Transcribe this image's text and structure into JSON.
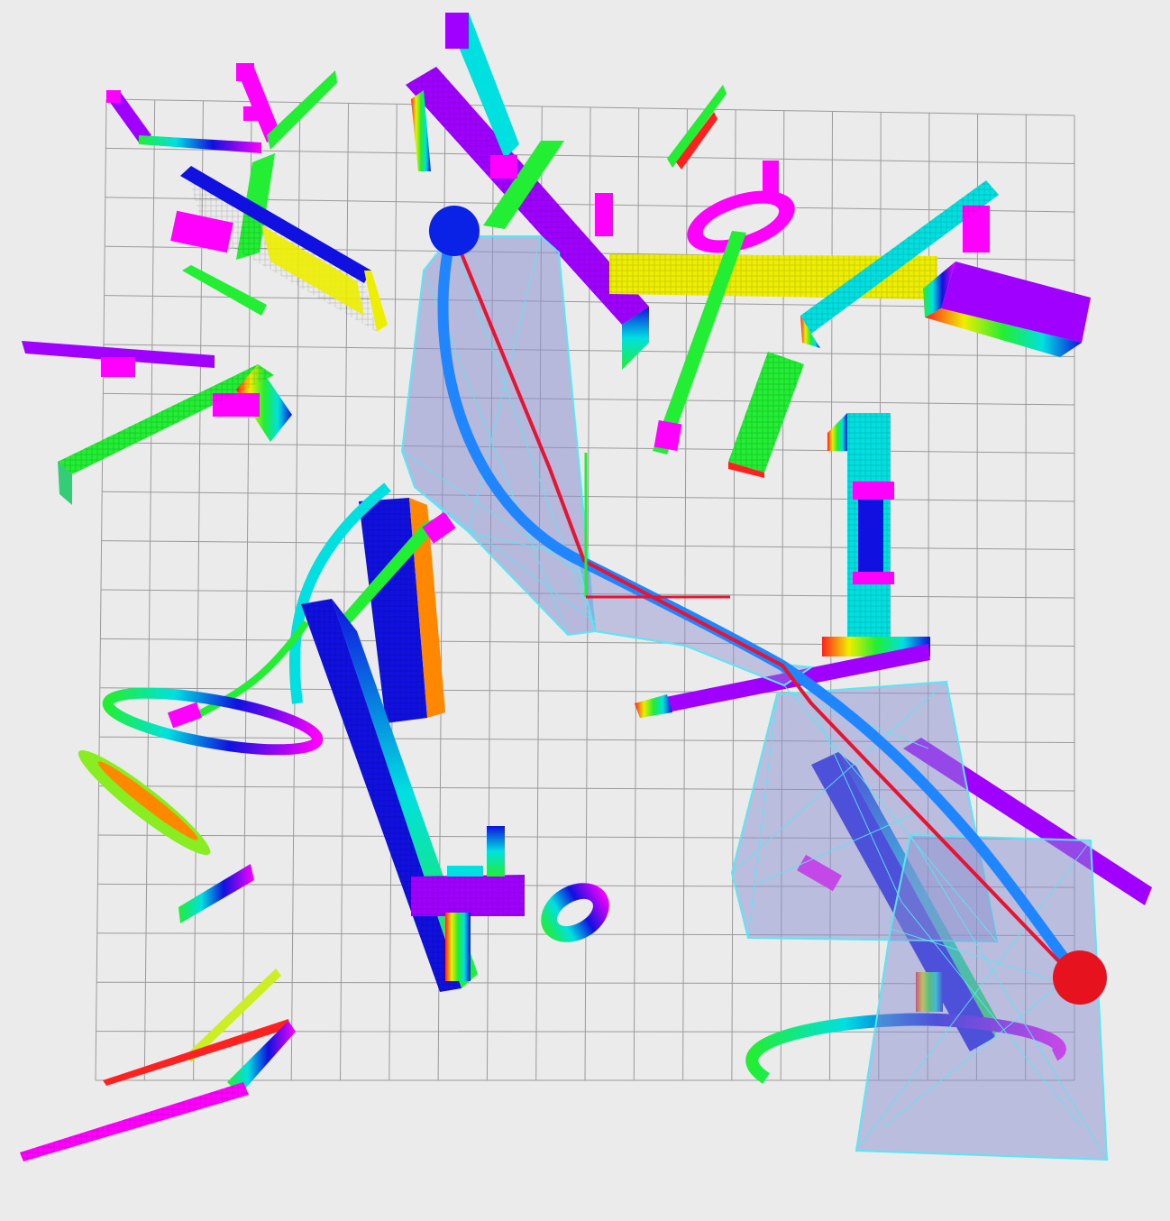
{
  "scene": {
    "description_free": true,
    "start_marker_color": "#0a22e6",
    "goal_marker_color": "#e6121e",
    "path_color": "#1f86ff",
    "straight_line_color": "#e61432",
    "hull_fill": "#8a8fd0",
    "hull_edge": "#5ae6f5",
    "grid_color": "#9a9a9a",
    "background": "#ebebeb",
    "obstacle_palette": [
      "#ff00ff",
      "#a000ff",
      "#1010e0",
      "#00e0e0",
      "#22ee33",
      "#eeee00",
      "#ff8800",
      "#ff2020"
    ]
  }
}
